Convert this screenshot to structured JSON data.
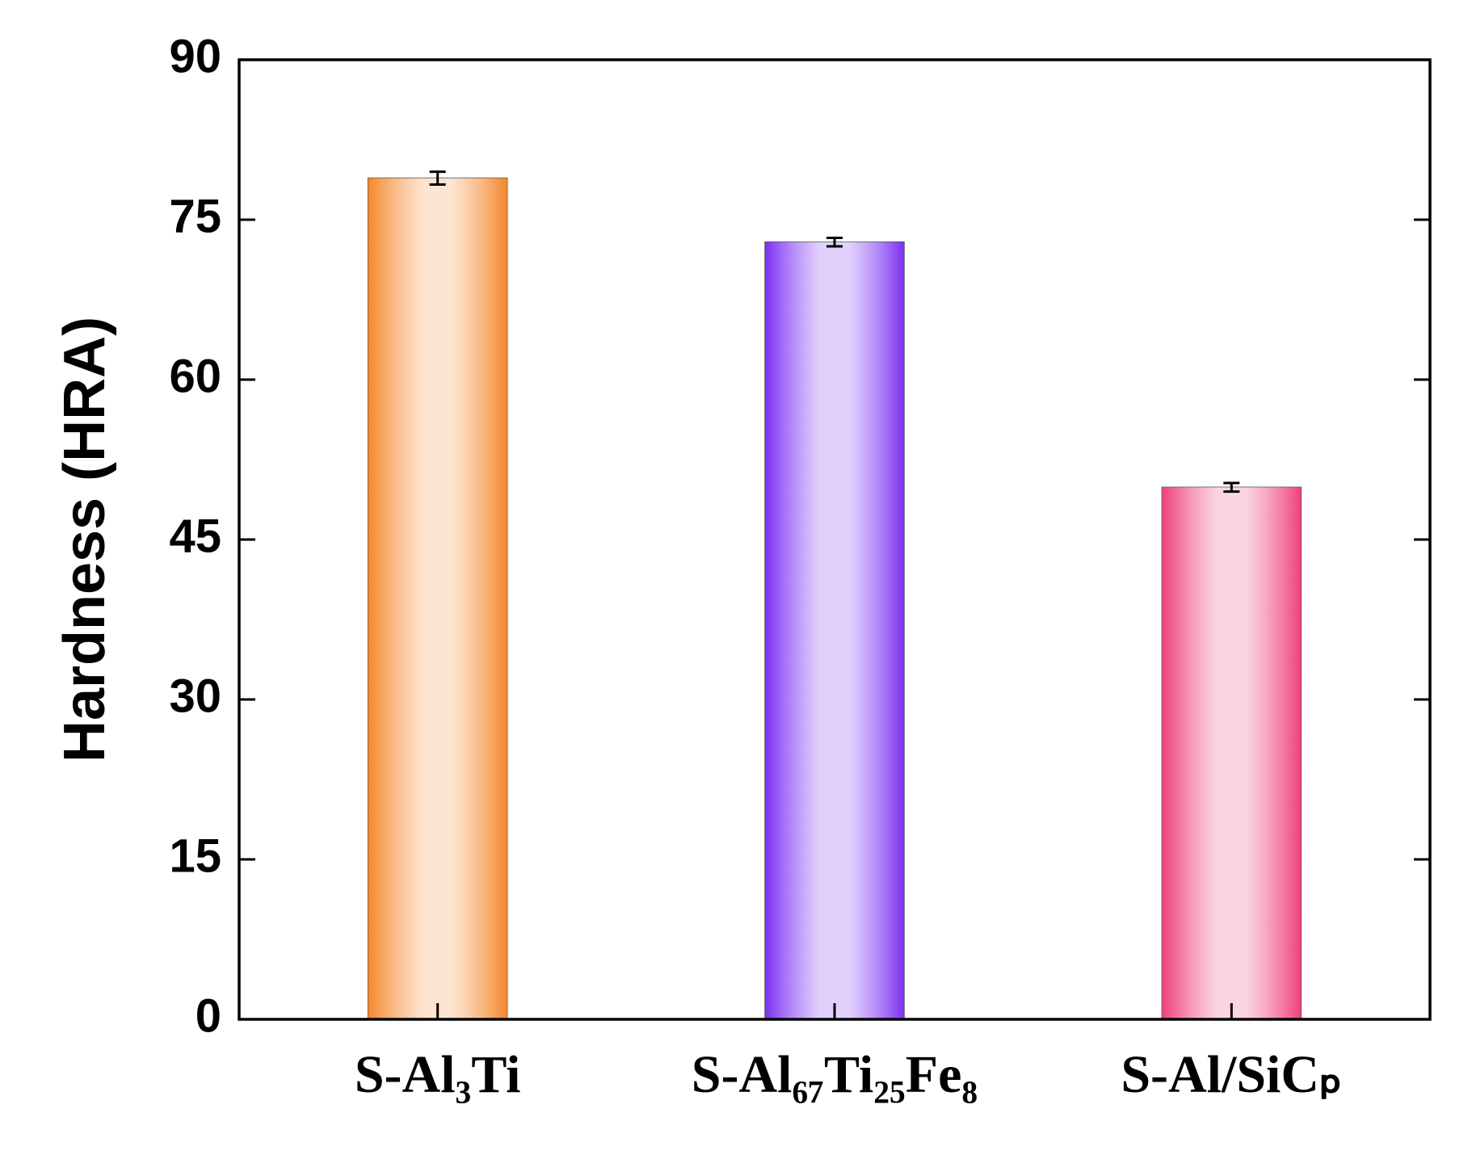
{
  "chart_data": {
    "type": "bar",
    "y_label": "Hardness (HRA)",
    "categories": [
      "S-Al₃Ti",
      "S-Al₆₇Ti₂₅Fe₈",
      "S-Al/SiCₚ"
    ],
    "values": [
      78.9,
      72.9,
      49.9
    ],
    "errors": [
      0.6,
      0.4,
      0.4
    ],
    "colors": [
      "#f5862a",
      "#7b2ff2",
      "#ef3f7c"
    ],
    "ylim": [
      0,
      90
    ],
    "yticks": [
      0,
      15,
      30,
      45,
      60,
      75,
      90
    ],
    "grid": false
  }
}
